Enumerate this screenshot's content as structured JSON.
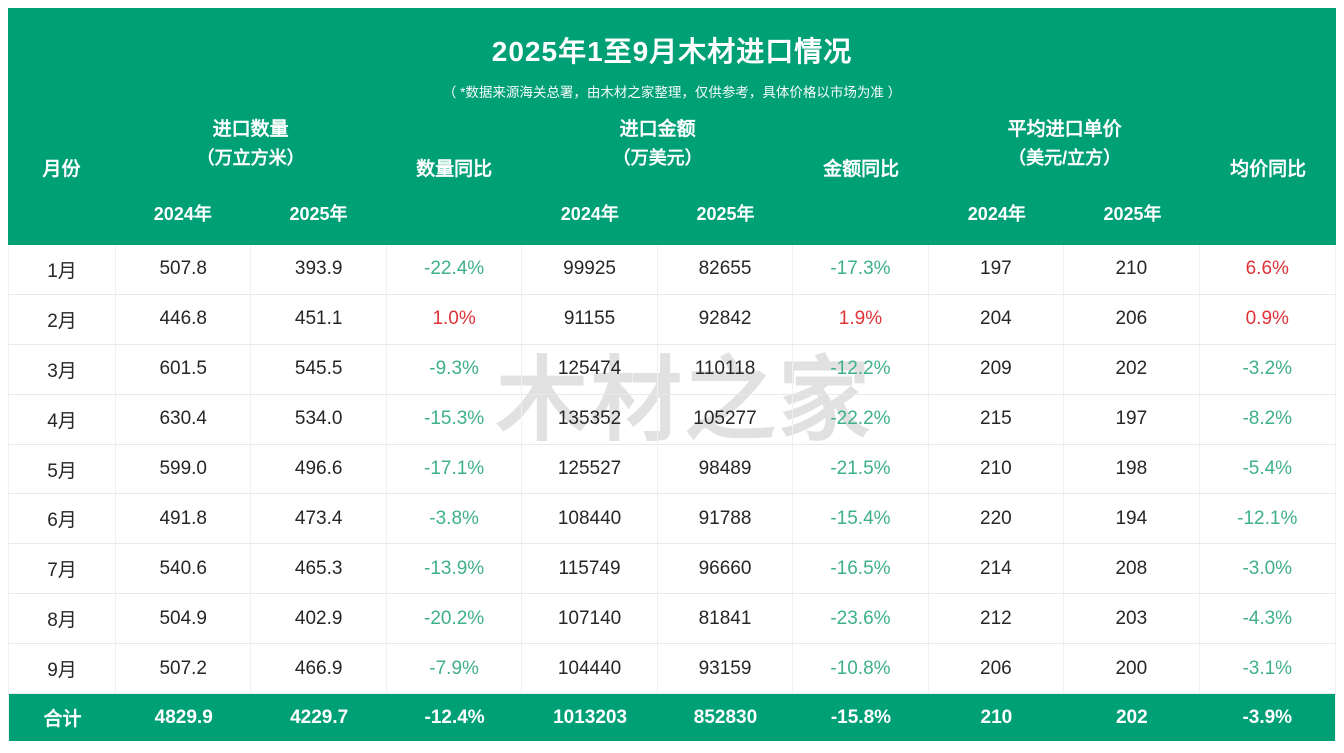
{
  "title": "2025年1至9月木材进口情况",
  "subtitle": "（ *数据来源海关总署，由木材之家整理，仅供参考，具体价格以市场为准 ）",
  "watermark": "木材之家",
  "colors": {
    "header_green": "#00A076",
    "negative_text_green": "#3FB08A",
    "positive_text_red": "#DE3338"
  },
  "table": {
    "headers": {
      "month": "月份",
      "quantity_group": "进口数量",
      "quantity_unit": "（万立方米）",
      "quantity_yoy": "数量同比",
      "amount_group": "进口金额",
      "amount_unit": "（万美元）",
      "amount_yoy": "金额同比",
      "price_group": "平均进口单价",
      "price_unit": "（美元/立方）",
      "price_yoy": "均价同比",
      "year_2024": "2024年",
      "year_2025": "2025年"
    },
    "rows": [
      {
        "month": "1月",
        "q2024": "507.8",
        "q2025": "393.9",
        "q_yoy": "-22.4%",
        "a2024": "99925",
        "a2025": "82655",
        "a_yoy": "-17.3%",
        "p2024": "197",
        "p2025": "210",
        "p_yoy": "6.6%"
      },
      {
        "month": "2月",
        "q2024": "446.8",
        "q2025": "451.1",
        "q_yoy": "1.0%",
        "a2024": "91155",
        "a2025": "92842",
        "a_yoy": "1.9%",
        "p2024": "204",
        "p2025": "206",
        "p_yoy": "0.9%"
      },
      {
        "month": "3月",
        "q2024": "601.5",
        "q2025": "545.5",
        "q_yoy": "-9.3%",
        "a2024": "125474",
        "a2025": "110118",
        "a_yoy": "-12.2%",
        "p2024": "209",
        "p2025": "202",
        "p_yoy": "-3.2%"
      },
      {
        "month": "4月",
        "q2024": "630.4",
        "q2025": "534.0",
        "q_yoy": "-15.3%",
        "a2024": "135352",
        "a2025": "105277",
        "a_yoy": "-22.2%",
        "p2024": "215",
        "p2025": "197",
        "p_yoy": "-8.2%"
      },
      {
        "month": "5月",
        "q2024": "599.0",
        "q2025": "496.6",
        "q_yoy": "-17.1%",
        "a2024": "125527",
        "a2025": "98489",
        "a_yoy": "-21.5%",
        "p2024": "210",
        "p2025": "198",
        "p_yoy": "-5.4%"
      },
      {
        "month": "6月",
        "q2024": "491.8",
        "q2025": "473.4",
        "q_yoy": "-3.8%",
        "a2024": "108440",
        "a2025": "91788",
        "a_yoy": "-15.4%",
        "p2024": "220",
        "p2025": "194",
        "p_yoy": "-12.1%"
      },
      {
        "month": "7月",
        "q2024": "540.6",
        "q2025": "465.3",
        "q_yoy": "-13.9%",
        "a2024": "115749",
        "a2025": "96660",
        "a_yoy": "-16.5%",
        "p2024": "214",
        "p2025": "208",
        "p_yoy": "-3.0%"
      },
      {
        "month": "8月",
        "q2024": "504.9",
        "q2025": "402.9",
        "q_yoy": "-20.2%",
        "a2024": "107140",
        "a2025": "81841",
        "a_yoy": "-23.6%",
        "p2024": "212",
        "p2025": "203",
        "p_yoy": "-4.3%"
      },
      {
        "month": "9月",
        "q2024": "507.2",
        "q2025": "466.9",
        "q_yoy": "-7.9%",
        "a2024": "104440",
        "a2025": "93159",
        "a_yoy": "-10.8%",
        "p2024": "206",
        "p2025": "200",
        "p_yoy": "-3.1%"
      }
    ],
    "total": {
      "month": "合计",
      "q2024": "4829.9",
      "q2025": "4229.7",
      "q_yoy": "-12.4%",
      "a2024": "1013203",
      "a2025": "852830",
      "a_yoy": "-15.8%",
      "p2024": "210",
      "p2025": "202",
      "p_yoy": "-3.9%"
    }
  }
}
